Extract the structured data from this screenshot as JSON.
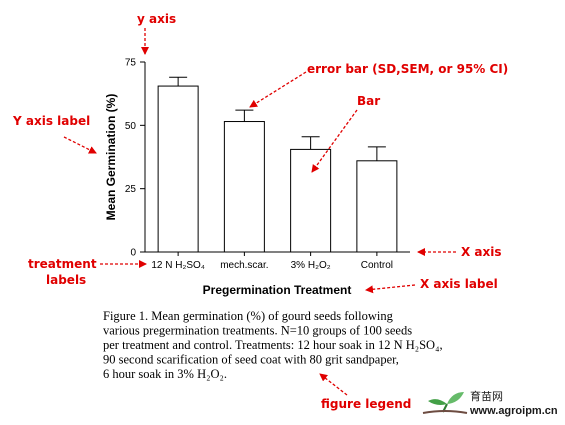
{
  "chart_data": {
    "type": "bar",
    "categories": [
      "12 N H2SO4",
      "mech.scar.",
      "3% H2O2",
      "Control"
    ],
    "values": [
      65.5,
      51.5,
      40.5,
      36
    ],
    "error": [
      3.5,
      4.5,
      5,
      5.5
    ],
    "ylabel": "Mean Germination (%)",
    "xlabel": "Pregermination Treatment",
    "ylim": [
      0,
      75
    ],
    "yticks": [
      0,
      25,
      50,
      75
    ],
    "grid": false
  },
  "tick_labels": {
    "y": [
      "0",
      "25",
      "50",
      "75"
    ],
    "x": [
      "12 N H₂SO₄",
      "mech.scar.",
      "3% H₂O₂",
      "Control"
    ]
  },
  "annotations": {
    "y_axis": "y axis",
    "y_axis_label": "Y axis label",
    "error_bar": "error bar (SD,SEM, or 95% CI)",
    "bar": "Bar",
    "x_axis": "X axis",
    "treatment_labels_1": "treatment",
    "treatment_labels_2": "labels",
    "x_axis_label": "X axis label",
    "figure_legend": "figure legend"
  },
  "figure_legend": [
    "Figure 1. Mean germination (%) of gourd seeds following",
    "various pregermination treatments. N=10 groups of 100 seeds",
    "per treatment and control. Treatments: 12 hour soak in 12 N H₂SO₄,",
    "90 second scarification of seed coat with 80 grit sandpaper,",
    "6 hour soak in 3% H₂O₂."
  ],
  "logo": {
    "text_cn": "育苗网",
    "url": "www.agroipm.cn"
  },
  "colors": {
    "annotation": "#e00000",
    "bar_fill": "#ffffff",
    "bar_stroke": "#000000"
  }
}
